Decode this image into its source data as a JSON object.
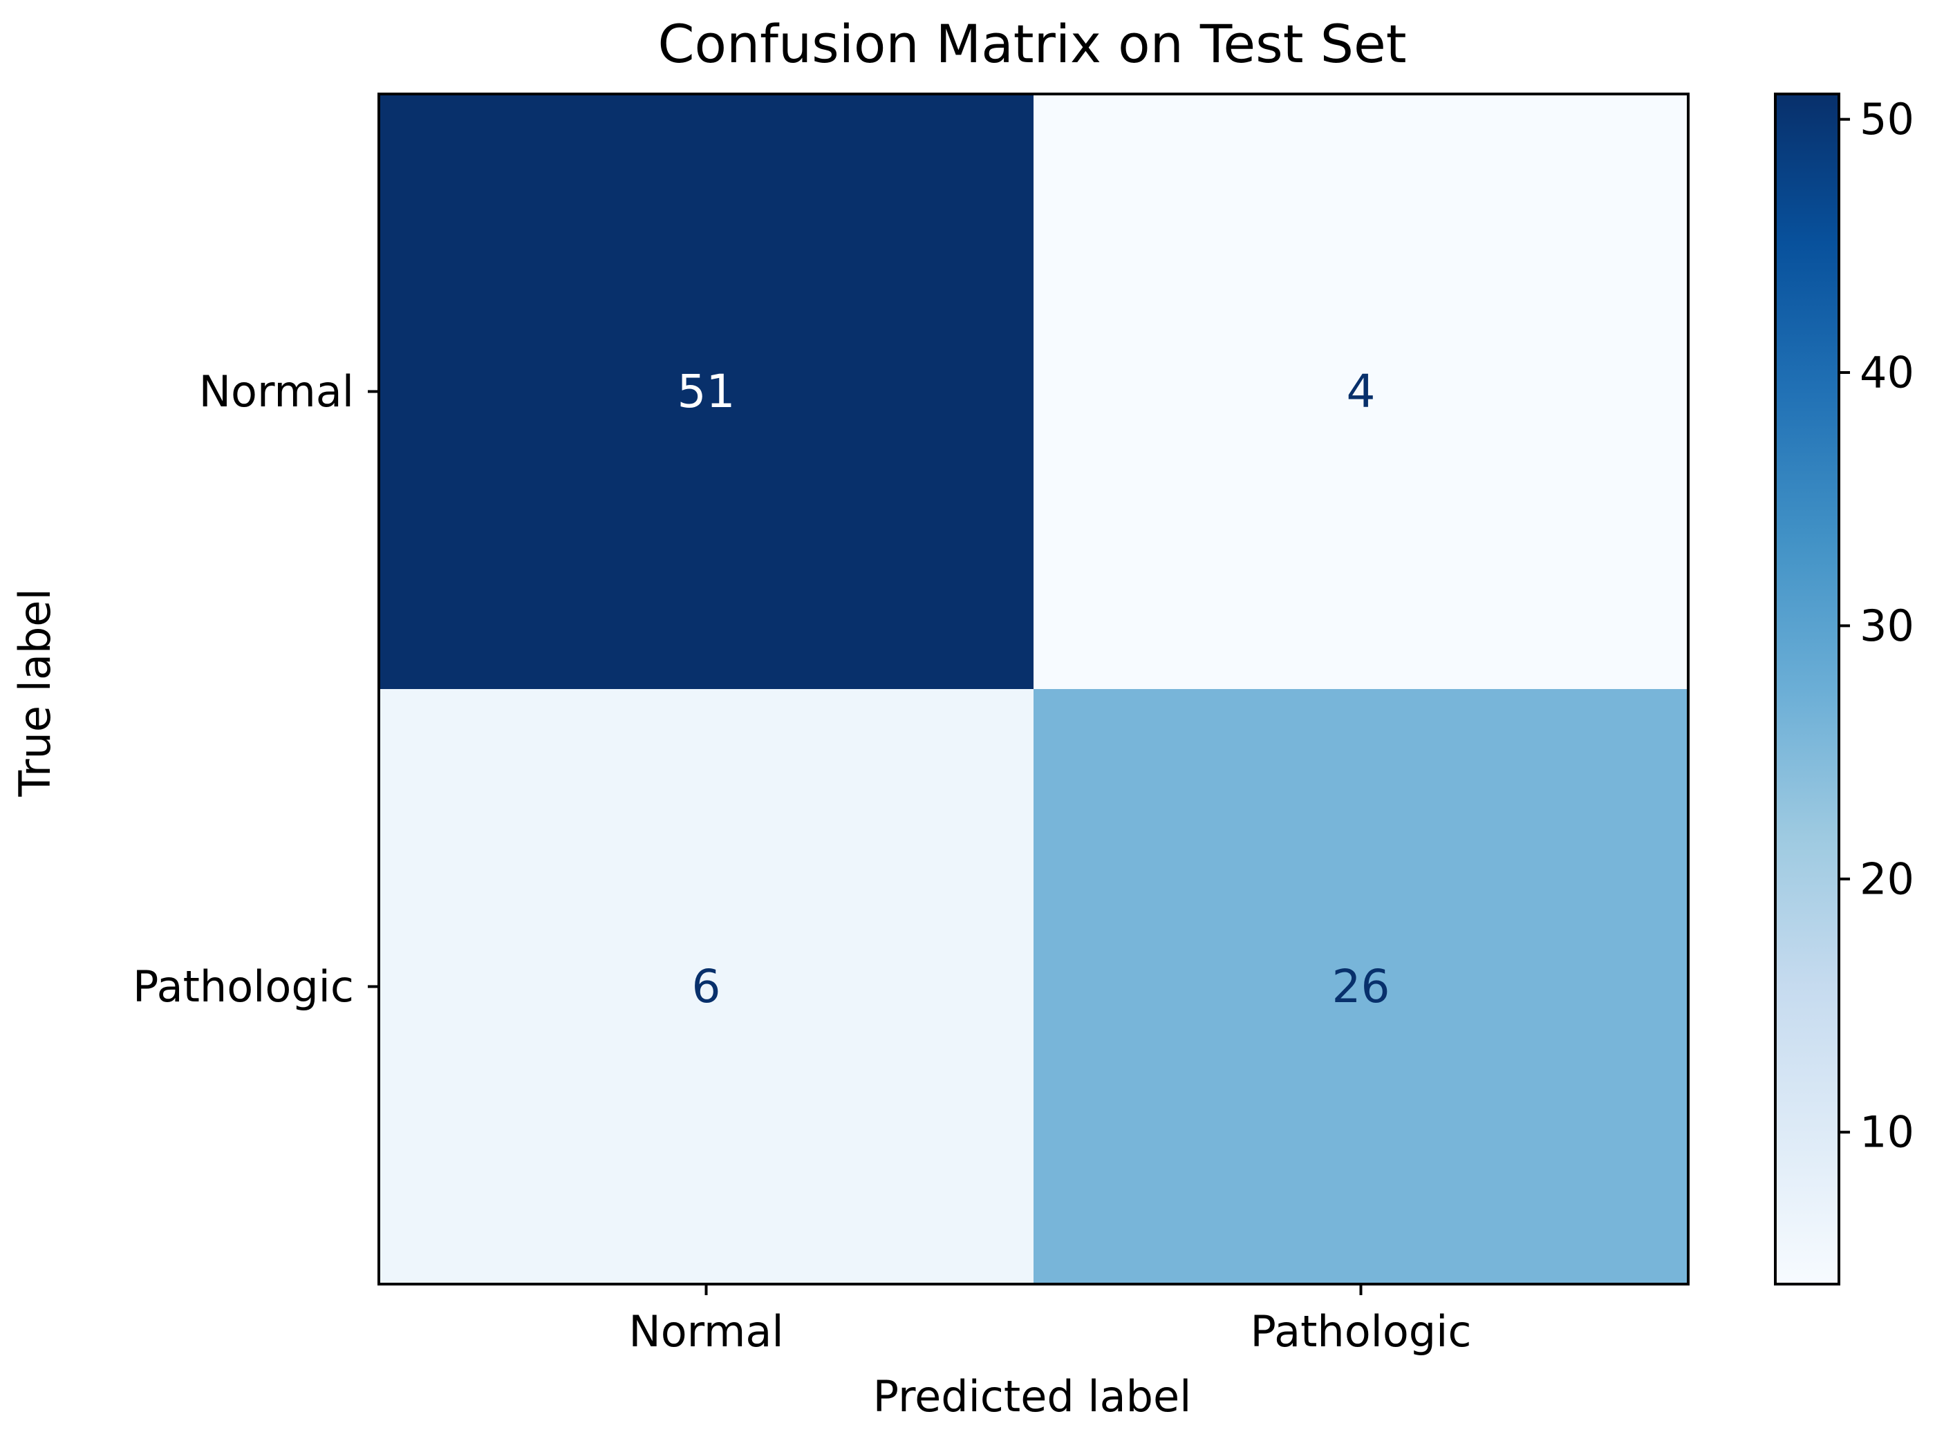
{
  "chart_data": {
    "type": "heatmap",
    "title": "Confusion Matrix on Test Set",
    "xlabel": "Predicted label",
    "ylabel": "True label",
    "x_categories": [
      "Normal",
      "Pathologic"
    ],
    "y_categories": [
      "Normal",
      "Pathologic"
    ],
    "values": [
      [
        51,
        4
      ],
      [
        6,
        26
      ]
    ],
    "colormap": "Blues",
    "colorbar": {
      "range": [
        4,
        51
      ],
      "ticks": [
        10,
        20,
        30,
        40,
        50
      ],
      "tick_labels": [
        "10",
        "20",
        "30",
        "40",
        "50"
      ]
    },
    "grid": false
  },
  "colors": {
    "dark_text": "#ffffff",
    "light_text": "#08306b",
    "axis": "#000000"
  }
}
